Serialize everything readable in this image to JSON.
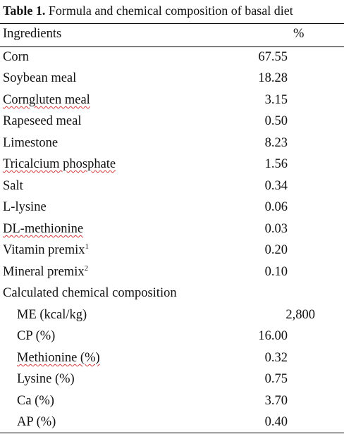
{
  "caption": {
    "label": "Table 1.",
    "text": " Formula and chemical composition of basal diet"
  },
  "header": {
    "ingredients": "Ingredients",
    "unit": "%"
  },
  "ingredients": [
    {
      "name": "Corn",
      "value": "67.55"
    },
    {
      "name": "Soybean meal",
      "value": "18.28"
    },
    {
      "name": "Corngluten meal",
      "value": "3.15"
    },
    {
      "name": "Rapeseed meal",
      "value": "0.50"
    },
    {
      "name": "Limestone",
      "value": "8.23"
    },
    {
      "name": "Tricalcium phosphate",
      "value": "1.56"
    },
    {
      "name": "Salt",
      "value": "0.34"
    },
    {
      "name": "L-lysine",
      "value": "0.06"
    },
    {
      "name": "DL-methionine",
      "value": "0.03"
    },
    {
      "name": "Vitamin premix",
      "sup": "1",
      "value": "0.20"
    },
    {
      "name": "Mineral premix",
      "sup": "2",
      "value": "0.10"
    }
  ],
  "composition": {
    "title": "Calculated chemical composition",
    "items": [
      {
        "name": "ME (kcal/kg)",
        "value": "2,800"
      },
      {
        "name": "CP (%)",
        "value": "16.00"
      },
      {
        "name": "Methionine (%)",
        "value": "0.32"
      },
      {
        "name": "Lysine (%)",
        "value": "0.75"
      },
      {
        "name": "Ca (%)",
        "value": "3.70"
      },
      {
        "name": "AP (%)",
        "value": "0.40"
      }
    ]
  }
}
